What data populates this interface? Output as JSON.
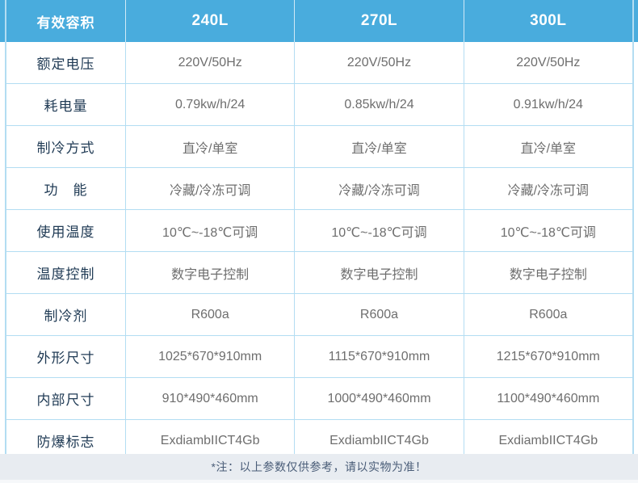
{
  "table": {
    "header": {
      "label": "有效容积",
      "columns": [
        "240L",
        "270L",
        "300L"
      ]
    },
    "rows": [
      {
        "label": "额定电压",
        "values": [
          "220V/50Hz",
          "220V/50Hz",
          "220V/50Hz"
        ]
      },
      {
        "label": "耗电量",
        "values": [
          "0.79kw/h/24",
          "0.85kw/h/24",
          "0.91kw/h/24"
        ]
      },
      {
        "label": "制冷方式",
        "values": [
          "直冷/单室",
          "直冷/单室",
          "直冷/单室"
        ]
      },
      {
        "label": "功　能",
        "values": [
          "冷藏/冷冻可调",
          "冷藏/冷冻可调",
          "冷藏/冷冻可调"
        ]
      },
      {
        "label": "使用温度",
        "values": [
          "10℃~-18℃可调",
          "10℃~-18℃可调",
          "10℃~-18℃可调"
        ]
      },
      {
        "label": "温度控制",
        "values": [
          "数字电子控制",
          "数字电子控制",
          "数字电子控制"
        ]
      },
      {
        "label": "制冷剂",
        "values": [
          "R600a",
          "R600a",
          "R600a"
        ]
      },
      {
        "label": "外形尺寸",
        "values": [
          "1025*670*910mm",
          "1115*670*910mm",
          "1215*670*910mm"
        ]
      },
      {
        "label": "内部尺寸",
        "values": [
          "910*490*460mm",
          "1000*490*460mm",
          "1100*490*460mm"
        ]
      },
      {
        "label": "防爆标志",
        "values": [
          "ExdiambIICT4Gb",
          "ExdiambIICT4Gb",
          "ExdiambIICT4Gb"
        ]
      }
    ]
  },
  "footer": {
    "note": "*注：以上参数仅供参考，请以实物为准！"
  },
  "colors": {
    "header_bg": "#49acdd",
    "border": "#b3ddf2",
    "label_text": "#1f3a54",
    "value_text": "#6e6e6e",
    "footer_bg": "#e8ecf1",
    "footer_text": "#4a5d78"
  }
}
